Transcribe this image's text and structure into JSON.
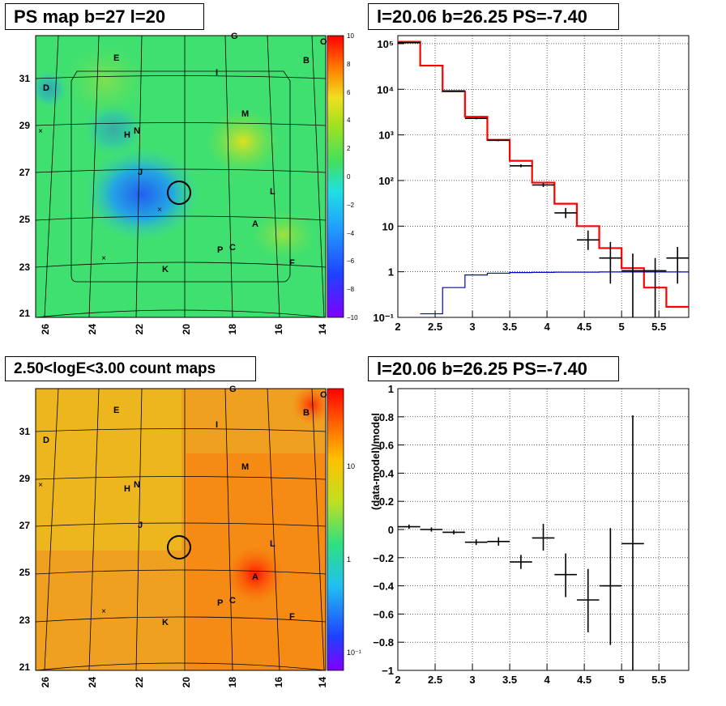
{
  "titles": {
    "tl": "PS map b=27 l=20",
    "tr": "l=20.06 b=26.25 PS=-7.40",
    "bl": "2.50<logE<3.00 count maps",
    "br": "l=20.06 b=26.25 PS=-7.40"
  },
  "colors": {
    "data": "#000000",
    "model": "#ff0000",
    "background_model": "#0000cc"
  },
  "maps": [
    {
      "name": "PS map",
      "x_ticks": [
        "26",
        "24",
        "22",
        "20",
        "18",
        "16",
        "14"
      ],
      "y_ticks": [
        "21",
        "23",
        "25",
        "27",
        "29",
        "31"
      ],
      "colorbar": {
        "scale": "linear",
        "min": -10,
        "max": 10,
        "ticks": [
          "10",
          "8",
          "6",
          "4",
          "2",
          "0",
          "−2",
          "−4",
          "−6",
          "−8",
          "−10"
        ]
      },
      "sources": [
        "G",
        "O",
        "E",
        "B",
        "D",
        "I",
        "M",
        "H",
        "N",
        "J",
        "L",
        "A",
        "P",
        "C",
        "F",
        "K"
      ]
    },
    {
      "name": "count map",
      "x_ticks": [
        "26",
        "24",
        "22",
        "20",
        "18",
        "16",
        "14"
      ],
      "y_ticks": [
        "21",
        "23",
        "25",
        "27",
        "29",
        "31"
      ],
      "colorbar": {
        "scale": "log",
        "ticks": [
          "10",
          "1",
          "10⁻¹"
        ]
      },
      "sources": [
        "G",
        "O",
        "E",
        "B",
        "D",
        "I",
        "M",
        "H",
        "N",
        "J",
        "L",
        "A",
        "P",
        "C",
        "F",
        "K"
      ]
    }
  ],
  "chart_data": [
    {
      "type": "line",
      "title": "l=20.06 b=26.25 PS=-7.40",
      "yscale": "log",
      "xlim": [
        2,
        5.9
      ],
      "ylim": [
        0.1,
        150000
      ],
      "x_ticks": [
        "2",
        "2.5",
        "3",
        "3.5",
        "4",
        "4.5",
        "5",
        "5.5"
      ],
      "y_ticks": [
        "10⁻¹",
        "1",
        "10",
        "10²",
        "10³",
        "10⁴",
        "10⁵"
      ],
      "grid": true,
      "bin_edges": [
        2.0,
        2.3,
        2.6,
        2.9,
        3.2,
        3.5,
        3.8,
        4.1,
        4.4,
        4.7,
        5.0,
        5.3,
        5.6,
        5.9
      ],
      "series": [
        {
          "values": [
            110000,
            33000,
            9000,
            2500,
            780,
            270,
            90,
            31,
            10,
            3.3,
            1.2,
            0.45,
            0.17
          ]
        },
        {
          "values": [
            0,
            0.12,
            0.45,
            0.85,
            0.93,
            0.96,
            0.97,
            0.98,
            0.98,
            0.99,
            0.99,
            0.99,
            0.99
          ]
        }
      ],
      "points": [
        {
          "x": 2.15,
          "y": 105000,
          "ylo": 104000,
          "yhi": 106000
        },
        {
          "x": 2.75,
          "y": 9200,
          "ylo": 9000,
          "yhi": 9400
        },
        {
          "x": 3.05,
          "y": 2300,
          "ylo": 2200,
          "yhi": 2400
        },
        {
          "x": 3.35,
          "y": 760,
          "ylo": 730,
          "yhi": 790
        },
        {
          "x": 3.65,
          "y": 210,
          "ylo": 195,
          "yhi": 225
        },
        {
          "x": 3.95,
          "y": 80,
          "ylo": 72,
          "yhi": 88
        },
        {
          "x": 4.25,
          "y": 19.5,
          "ylo": 15,
          "yhi": 25
        },
        {
          "x": 4.55,
          "y": 5,
          "ylo": 3,
          "yhi": 8
        },
        {
          "x": 4.85,
          "y": 2,
          "ylo": 0.55,
          "yhi": 4.5
        },
        {
          "x": 5.15,
          "y": 1.05,
          "ylo": 0.1,
          "yhi": 2.5
        },
        {
          "x": 5.45,
          "y": 1.05,
          "ylo": 0.1,
          "yhi": 2
        },
        {
          "x": 5.75,
          "y": 2,
          "ylo": 0.55,
          "yhi": 3.5
        }
      ]
    },
    {
      "type": "scatter",
      "title": "l=20.06 b=26.25 PS=-7.40",
      "ylabel": "(data-model)/model",
      "xlim": [
        2,
        5.9
      ],
      "ylim": [
        -1,
        1
      ],
      "x_ticks": [
        "2",
        "2.5",
        "3",
        "3.5",
        "4",
        "4.5",
        "5",
        "5.5"
      ],
      "y_ticks": [
        "−1",
        "−0.8",
        "−0.6",
        "−0.4",
        "−0.2",
        "0",
        "0.2",
        "0.4",
        "0.6",
        "0.8",
        "1"
      ],
      "grid": true,
      "points": [
        {
          "x": 2.15,
          "y": 0.02,
          "ylo": 0.005,
          "yhi": 0.035,
          "xerr": 0.15
        },
        {
          "x": 2.45,
          "y": 0.0,
          "ylo": -0.015,
          "yhi": 0.015,
          "xerr": 0.15
        },
        {
          "x": 2.75,
          "y": -0.02,
          "ylo": -0.035,
          "yhi": -0.005,
          "xerr": 0.15
        },
        {
          "x": 3.05,
          "y": -0.09,
          "ylo": -0.11,
          "yhi": -0.07,
          "xerr": 0.15
        },
        {
          "x": 3.35,
          "y": -0.085,
          "ylo": -0.115,
          "yhi": -0.055,
          "xerr": 0.15
        },
        {
          "x": 3.65,
          "y": -0.23,
          "ylo": -0.28,
          "yhi": -0.18,
          "xerr": 0.15
        },
        {
          "x": 3.95,
          "y": -0.06,
          "ylo": -0.15,
          "yhi": 0.04,
          "xerr": 0.15
        },
        {
          "x": 4.25,
          "y": -0.32,
          "ylo": -0.48,
          "yhi": -0.17,
          "xerr": 0.15
        },
        {
          "x": 4.55,
          "y": -0.5,
          "ylo": -0.73,
          "yhi": -0.28,
          "xerr": 0.15
        },
        {
          "x": 4.85,
          "y": -0.4,
          "ylo": -0.82,
          "yhi": 0.01,
          "xerr": 0.15
        },
        {
          "x": 5.15,
          "y": -0.1,
          "ylo": -1.0,
          "yhi": 0.81,
          "xerr": 0.15
        }
      ]
    }
  ]
}
